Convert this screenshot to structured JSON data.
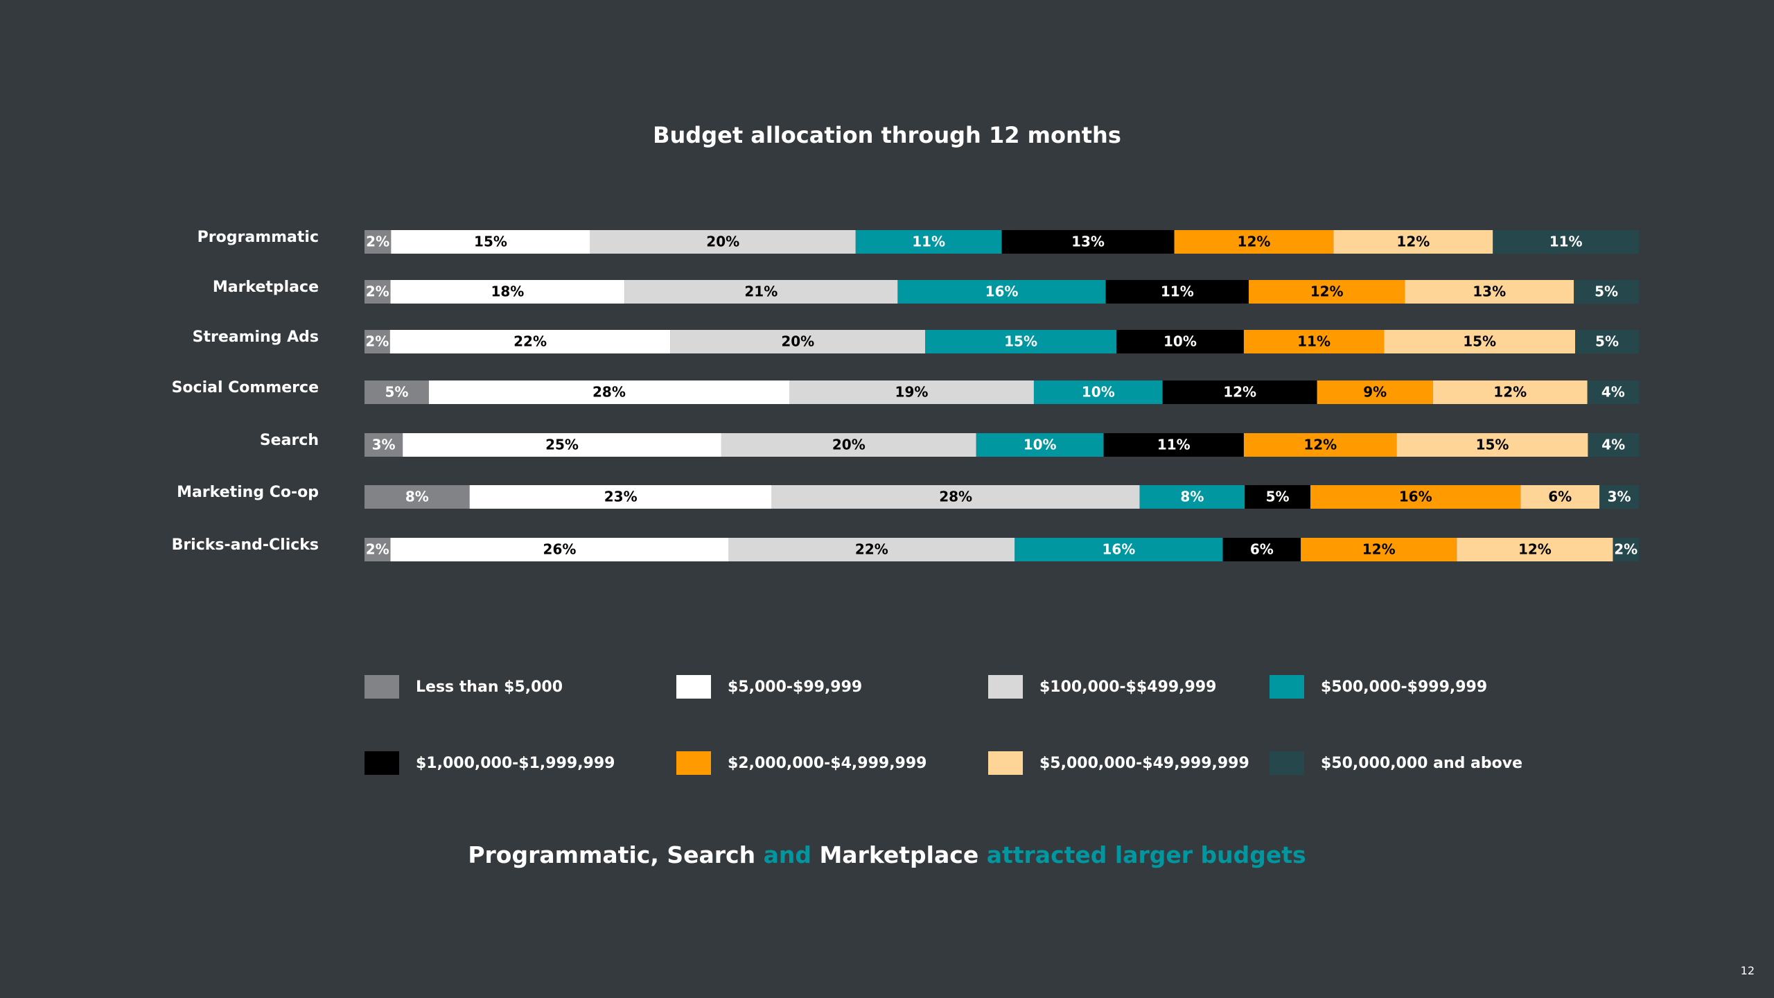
{
  "chart_data": {
    "type": "bar",
    "stacked": true,
    "orientation": "horizontal",
    "title": "Budget allocation through 12 months",
    "categories": [
      "Programmatic",
      "Marketplace",
      "Streaming Ads",
      "Social Commerce",
      "Search",
      "Marketing Co-op",
      "Bricks-and-Clicks"
    ],
    "series": [
      {
        "name": "Less than $5,000",
        "color": "#818386",
        "text_color": "#ffffff",
        "values": [
          2,
          2,
          2,
          5,
          3,
          8,
          2
        ]
      },
      {
        "name": "$5,000-$99,999",
        "color": "#ffffff",
        "text_color": "#000000",
        "values": [
          15,
          18,
          22,
          28,
          25,
          23,
          26
        ]
      },
      {
        "name": "$100,000-$$499,999",
        "color": "#d8d8d8",
        "text_color": "#000000",
        "values": [
          20,
          21,
          20,
          19,
          20,
          28,
          22
        ]
      },
      {
        "name": "$500,000-$999,999",
        "color": "#0097a1",
        "text_color": "#ffffff",
        "values": [
          11,
          16,
          15,
          10,
          10,
          8,
          16
        ]
      },
      {
        "name": "$1,000,000-$1,999,999",
        "color": "#000000",
        "text_color": "#ffffff",
        "values": [
          13,
          11,
          10,
          12,
          11,
          5,
          6
        ]
      },
      {
        "name": "$2,000,000-$4,999,999",
        "color": "#ff9a00",
        "text_color": "#000000",
        "values": [
          12,
          12,
          11,
          9,
          12,
          16,
          12
        ]
      },
      {
        "name": "$5,000,000-$49,999,999",
        "color": "#fed596",
        "text_color": "#000000",
        "values": [
          12,
          13,
          15,
          12,
          15,
          6,
          12
        ]
      },
      {
        "name": "$50,000,000 and above",
        "color": "#26474b",
        "text_color": "#ffffff",
        "values": [
          11,
          5,
          5,
          4,
          4,
          3,
          2
        ]
      }
    ],
    "value_suffix": "%",
    "legend": "bottom",
    "grid": false
  },
  "takeaway": {
    "part1": "Programmatic, Search ",
    "part2": "and",
    "part3": " Marketplace ",
    "part4": "attracted larger budgets",
    "accent_color": "#0097a1"
  },
  "page_number": "12"
}
